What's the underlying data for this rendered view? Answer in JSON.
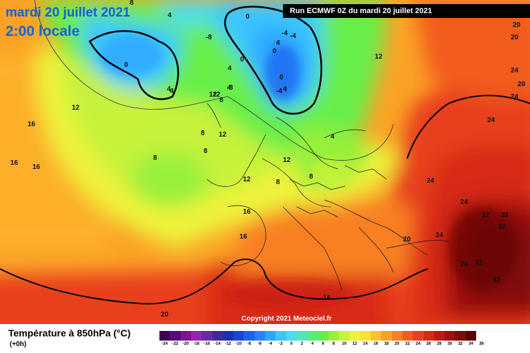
{
  "title": {
    "date": "mardi 20 juillet 2021",
    "time": "2:00 locale"
  },
  "run_info": "Run ECMWF 0Z du mardi 20 juillet 2021",
  "copyright": "Copyright 2021 Meteociel.fr",
  "legend": {
    "title": "Température à 850hPa (°C)",
    "subtitle": "(+0h)",
    "ticks": [
      "-24",
      "-22",
      "-20",
      "-18",
      "-16",
      "-14",
      "-12",
      "-10",
      "-8",
      "-6",
      "-4",
      "-2",
      "0",
      "2",
      "4",
      "6",
      "8",
      "10",
      "12",
      "14",
      "16",
      "18",
      "20",
      "22",
      "24",
      "26",
      "28",
      "30",
      "32",
      "34",
      "36"
    ],
    "colors": [
      "#3a0050",
      "#5a0a78",
      "#7a1596",
      "#9823b2",
      "#6a2aa6",
      "#3e2aa0",
      "#1f2fb4",
      "#1a46d4",
      "#1d62ee",
      "#2484ff",
      "#2ea6ff",
      "#3bc6ff",
      "#46def0",
      "#4ee8b8",
      "#55ec7c",
      "#68ee4a",
      "#98f03a",
      "#c6f23a",
      "#eef23a",
      "#fde32e",
      "#fcc42a",
      "#fba226",
      "#f88022",
      "#f25c1f",
      "#e8401c",
      "#d82a18",
      "#c01a14",
      "#a01010",
      "#800a0a",
      "#5a0505"
    ]
  },
  "map": {
    "labels": [
      {
        "text": "8"
      },
      {
        "text": "4"
      },
      {
        "text": "0"
      },
      {
        "text": "0"
      },
      {
        "text": "4"
      },
      {
        "text": "4"
      },
      {
        "text": "0"
      },
      {
        "text": "-4"
      },
      {
        "text": "-4"
      },
      {
        "text": "0"
      },
      {
        "text": "-4"
      },
      {
        "text": "4"
      },
      {
        "text": "0"
      },
      {
        "text": "4"
      },
      {
        "text": "4"
      },
      {
        "text": "12"
      },
      {
        "text": "12"
      },
      {
        "text": "12"
      },
      {
        "text": "8"
      },
      {
        "text": "16"
      },
      {
        "text": "8"
      },
      {
        "text": "8"
      },
      {
        "text": "12"
      },
      {
        "text": "16"
      },
      {
        "text": "16"
      },
      {
        "text": "8"
      },
      {
        "text": "12"
      },
      {
        "text": "8"
      },
      {
        "text": "8"
      },
      {
        "text": "12"
      },
      {
        "text": "4"
      },
      {
        "text": "16"
      },
      {
        "text": "16"
      },
      {
        "text": "20"
      },
      {
        "text": "16"
      },
      {
        "text": "20"
      },
      {
        "text": "20"
      },
      {
        "text": "20"
      },
      {
        "text": "24"
      },
      {
        "text": "20"
      },
      {
        "text": "24"
      },
      {
        "text": "24"
      },
      {
        "text": "24"
      },
      {
        "text": "24"
      },
      {
        "text": "24"
      },
      {
        "text": "32"
      },
      {
        "text": "32"
      },
      {
        "text": "32"
      },
      {
        "text": "28"
      },
      {
        "text": "32"
      },
      {
        "text": "32"
      },
      {
        "text": "12"
      },
      {
        "text": "8"
      },
      {
        "text": "4"
      },
      {
        "text": "-8"
      }
    ]
  }
}
